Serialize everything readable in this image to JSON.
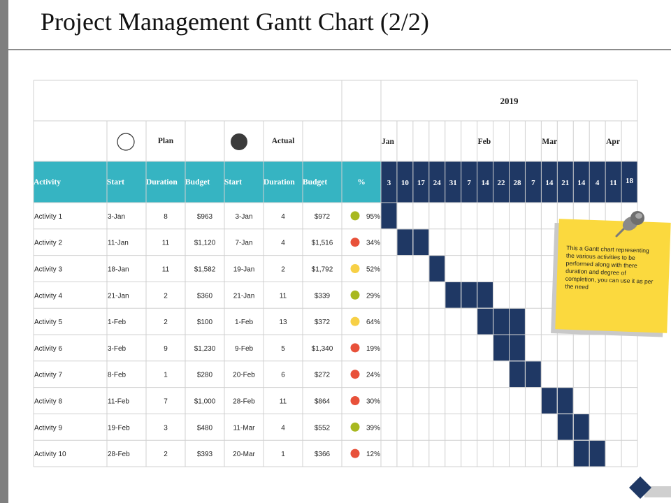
{
  "title": "Project Management Gantt Chart (2/2)",
  "colors": {
    "header_teal": "#36b4c2",
    "timeline_navy": "#1f3864",
    "bar_navy": "#1f3864",
    "grid": "#d0d0d0",
    "status_green": "#a8b820",
    "status_red": "#e8513a",
    "status_yellow": "#f7d046"
  },
  "legend": {
    "plan_label": "Plan",
    "actual_label": "Actual"
  },
  "chart_data": {
    "type": "table",
    "year": "2019",
    "months": [
      {
        "label": "Jan",
        "col": 0
      },
      {
        "label": "Feb",
        "col": 6
      },
      {
        "label": "Mar",
        "col": 10
      },
      {
        "label": "Apr",
        "col": 14
      }
    ],
    "weeks": [
      "3",
      "10",
      "17",
      "24",
      "31",
      "7",
      "14",
      "22",
      "28",
      "7",
      "14",
      "21",
      "14",
      "4",
      "11",
      "18"
    ],
    "columns": [
      "Activity",
      "Start",
      "Duration",
      "Budget",
      "Start",
      "Duration",
      "Budget",
      "%"
    ],
    "rows": [
      {
        "activity": "Activity 1",
        "plan_start": "3-Jan",
        "plan_duration": "8",
        "plan_budget": "$963",
        "actual_start": "3-Jan",
        "actual_duration": "4",
        "actual_budget": "$972",
        "status": "green",
        "percent": "95%",
        "bar_weeks": [
          0
        ]
      },
      {
        "activity": "Activity 2",
        "plan_start": "11-Jan",
        "plan_duration": "11",
        "plan_budget": "$1,120",
        "actual_start": "7-Jan",
        "actual_duration": "4",
        "actual_budget": "$1,516",
        "status": "red",
        "percent": "34%",
        "bar_weeks": [
          1,
          2
        ]
      },
      {
        "activity": "Activity 3",
        "plan_start": "18-Jan",
        "plan_duration": "11",
        "plan_budget": "$1,582",
        "actual_start": "19-Jan",
        "actual_duration": "2",
        "actual_budget": "$1,792",
        "status": "yellow",
        "percent": "52%",
        "bar_weeks": [
          3
        ]
      },
      {
        "activity": "Activity 4",
        "plan_start": "21-Jan",
        "plan_duration": "2",
        "plan_budget": "$360",
        "actual_start": "21-Jan",
        "actual_duration": "11",
        "actual_budget": "$339",
        "status": "green",
        "percent": "29%",
        "bar_weeks": [
          4,
          5,
          6
        ]
      },
      {
        "activity": "Activity 5",
        "plan_start": "1-Feb",
        "plan_duration": "2",
        "plan_budget": "$100",
        "actual_start": "1-Feb",
        "actual_duration": "13",
        "actual_budget": "$372",
        "status": "yellow",
        "percent": "64%",
        "bar_weeks": [
          6,
          7,
          8
        ]
      },
      {
        "activity": "Activity 6",
        "plan_start": "3-Feb",
        "plan_duration": "9",
        "plan_budget": "$1,230",
        "actual_start": "9-Feb",
        "actual_duration": "5",
        "actual_budget": "$1,340",
        "status": "red",
        "percent": "19%",
        "bar_weeks": [
          7,
          8
        ]
      },
      {
        "activity": "Activity 7",
        "plan_start": "8-Feb",
        "plan_duration": "1",
        "plan_budget": "$280",
        "actual_start": "20-Feb",
        "actual_duration": "6",
        "actual_budget": "$272",
        "status": "red",
        "percent": "24%",
        "bar_weeks": [
          8,
          9
        ]
      },
      {
        "activity": "Activity 8",
        "plan_start": "11-Feb",
        "plan_duration": "7",
        "plan_budget": "$1,000",
        "actual_start": "28-Feb",
        "actual_duration": "11",
        "actual_budget": "$864",
        "status": "red",
        "percent": "30%",
        "bar_weeks": [
          10,
          11
        ]
      },
      {
        "activity": "Activity 9",
        "plan_start": "19-Feb",
        "plan_duration": "3",
        "plan_budget": "$480",
        "actual_start": "11-Mar",
        "actual_duration": "4",
        "actual_budget": "$552",
        "status": "green",
        "percent": "39%",
        "bar_weeks": [
          11,
          12
        ]
      },
      {
        "activity": "Activity 10",
        "plan_start": "28-Feb",
        "plan_duration": "2",
        "plan_budget": "$393",
        "actual_start": "20-Mar",
        "actual_duration": "1",
        "actual_budget": "$366",
        "status": "red",
        "percent": "12%",
        "bar_weeks": [
          12,
          13
        ]
      }
    ]
  },
  "sticky_note": {
    "text": "This a Gantt chart representing the various activities to be performed along with there duration and degree of completion, you can use it as per the need"
  }
}
